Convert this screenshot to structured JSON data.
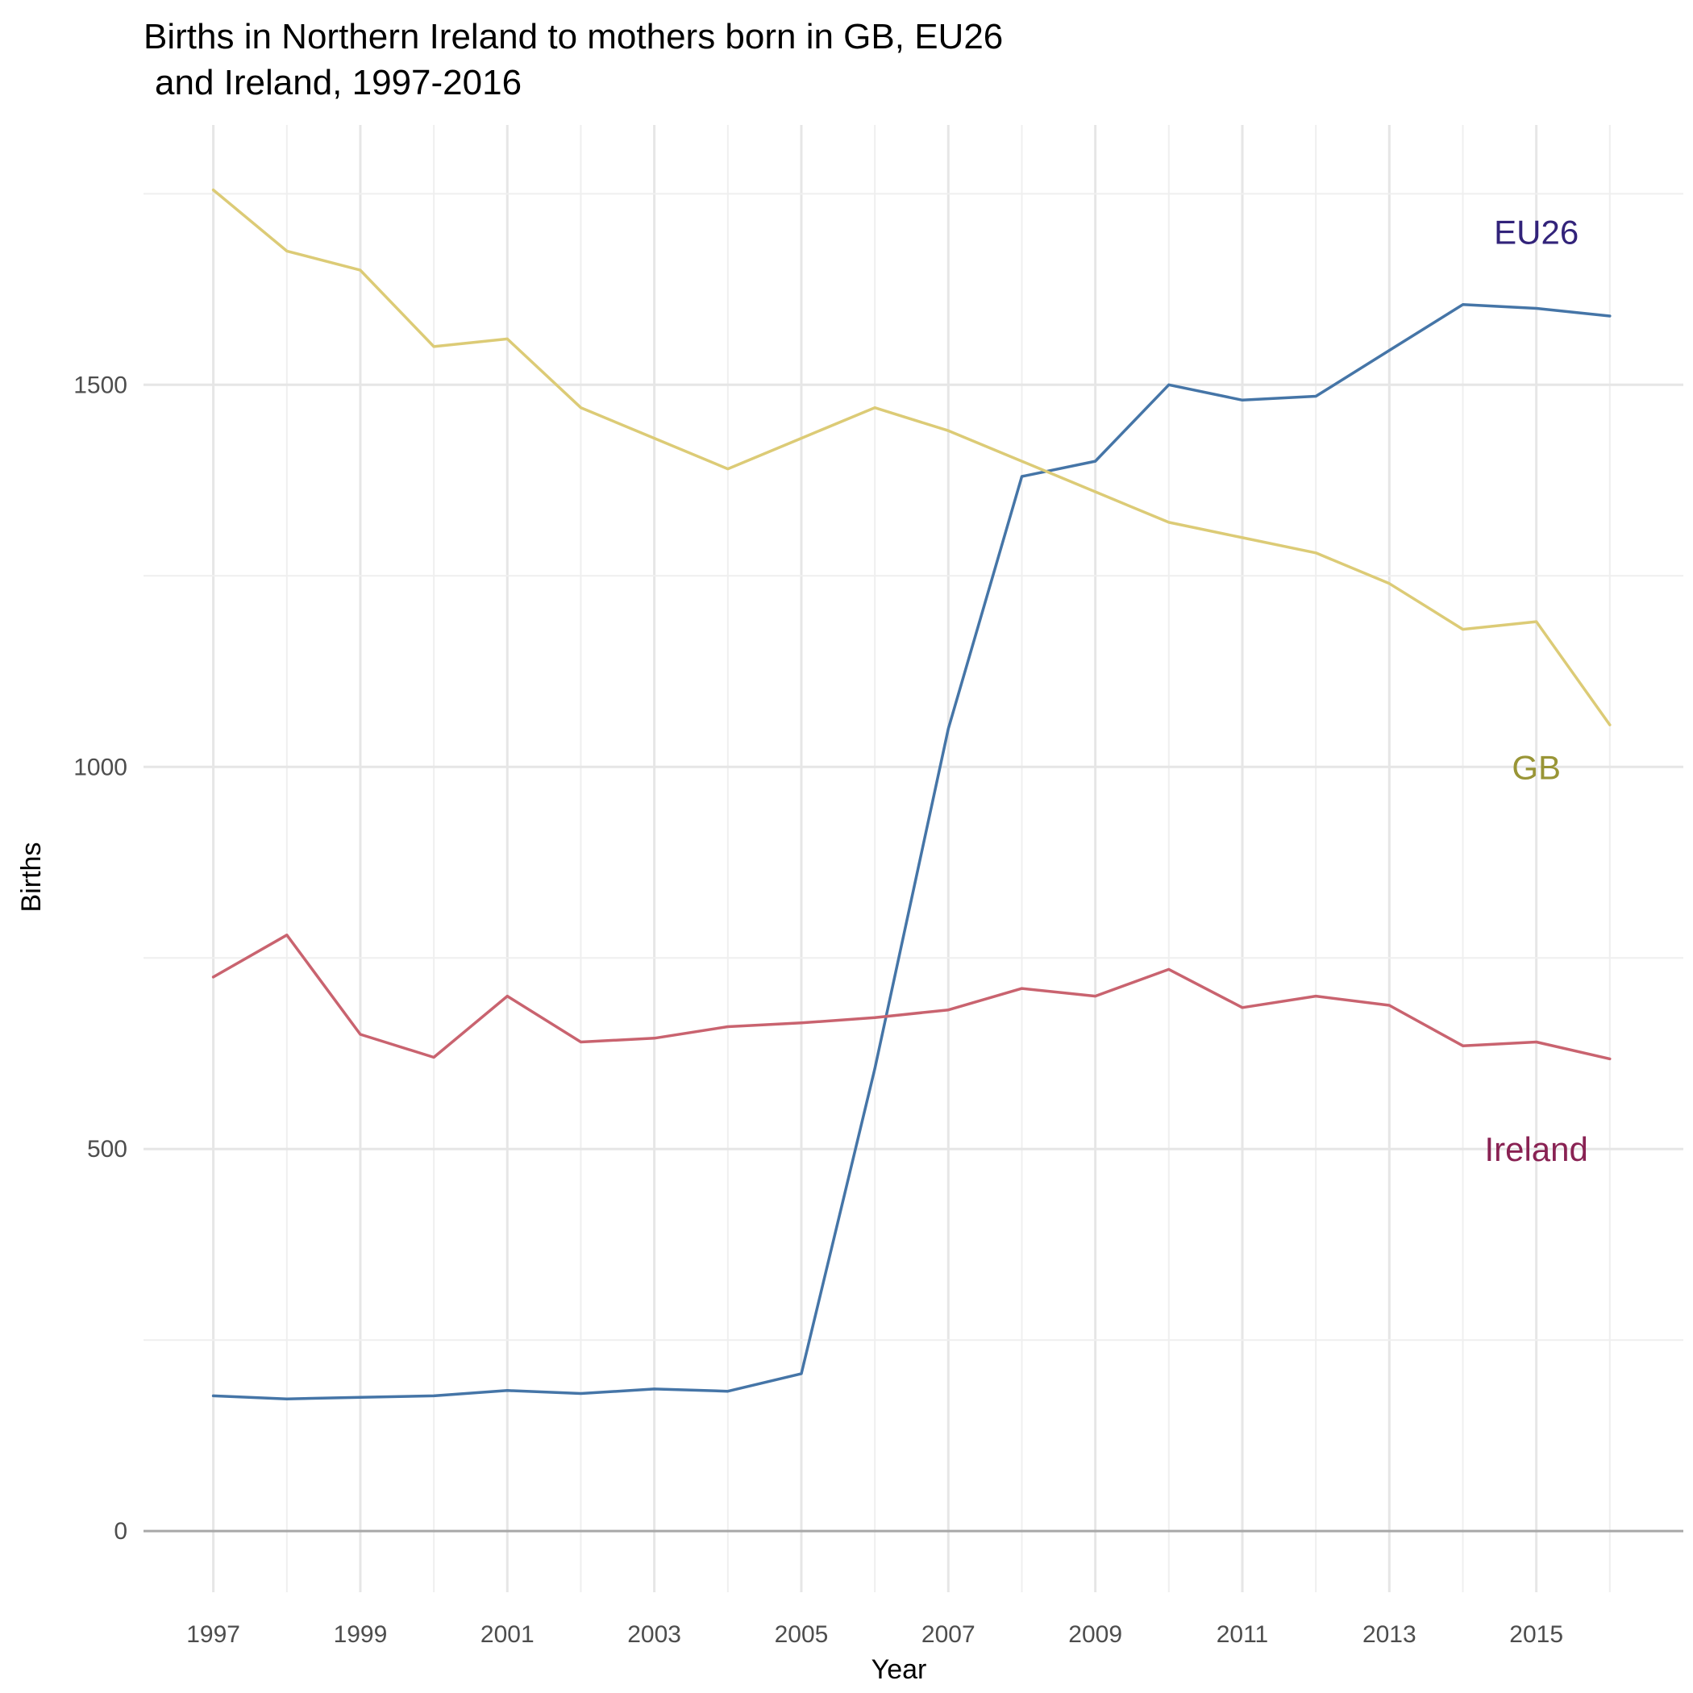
{
  "chart_data": {
    "type": "line",
    "title": [
      "Births in Northern Ireland to mothers born in GB, EU26",
      "and Ireland, 1997-2016"
    ],
    "xlabel": "Year",
    "ylabel": "Births",
    "x": [
      1997,
      1998,
      1999,
      2000,
      2001,
      2002,
      2003,
      2004,
      2005,
      2006,
      2007,
      2008,
      2009,
      2010,
      2011,
      2012,
      2013,
      2014,
      2015,
      2016
    ],
    "x_tick_labels": [
      "1997",
      "1999",
      "2001",
      "2003",
      "2005",
      "2007",
      "2009",
      "2011",
      "2013",
      "2015"
    ],
    "y_tick_labels": [
      "0",
      "500",
      "1000",
      "1500"
    ],
    "xlim": [
      1996.05,
      2017.0
    ],
    "ylim": [
      -80,
      1840
    ],
    "grid": true,
    "legend": "direct labels at right",
    "series": [
      {
        "name": "EU26",
        "color": "#4575a7",
        "label_color": "#32237a",
        "values": [
          177,
          173,
          175,
          177,
          184,
          180,
          186,
          183,
          206,
          605,
          1050,
          1380,
          1400,
          1500,
          1480,
          1485,
          1545,
          1605,
          1600,
          1590
        ]
      },
      {
        "name": "GB",
        "color": "#dccb76",
        "label_color": "#999536",
        "values": [
          1755,
          1675,
          1650,
          1550,
          1560,
          1470,
          1430,
          1390,
          1430,
          1470,
          1440,
          1400,
          1360,
          1320,
          1300,
          1280,
          1240,
          1180,
          1190,
          1055
        ]
      },
      {
        "name": "Ireland",
        "color": "#c9636f",
        "label_color": "#892253",
        "values": [
          725,
          780,
          650,
          620,
          700,
          640,
          645,
          660,
          665,
          672,
          682,
          710,
          700,
          735,
          685,
          700,
          688,
          635,
          640,
          618
        ]
      }
    ]
  }
}
